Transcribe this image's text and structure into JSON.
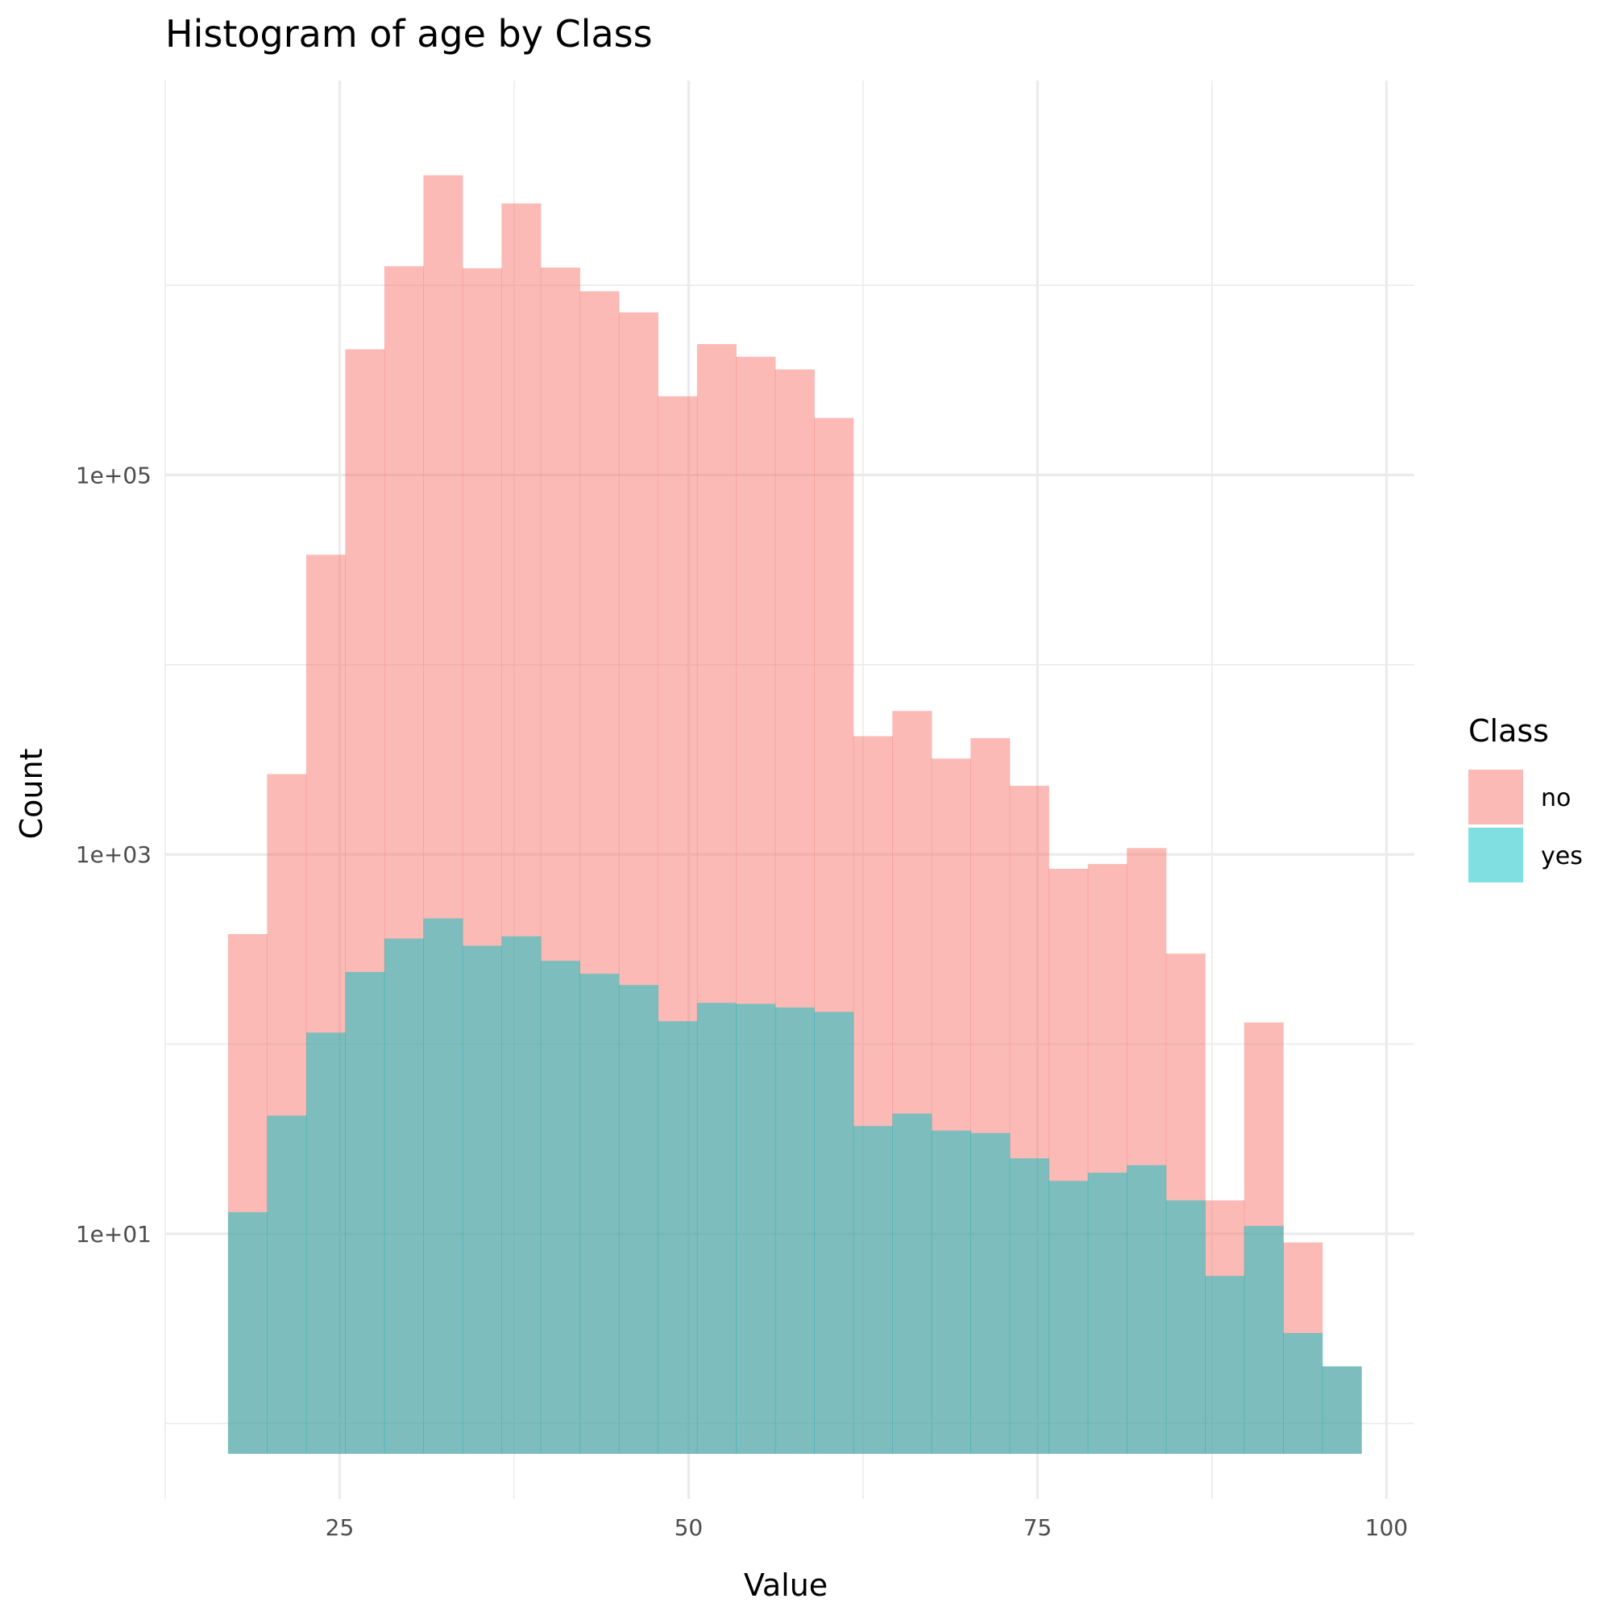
{
  "chart_data": {
    "type": "bar",
    "title": "Histogram of age by Class",
    "xlabel": "Value",
    "ylabel": "Count",
    "x_ticks": [
      25,
      50,
      75,
      100
    ],
    "y_ticks": [
      {
        "value": 10,
        "label": "1e+01"
      },
      {
        "value": 1000,
        "label": "1e+03"
      },
      {
        "value": 100000,
        "label": "1e+05"
      }
    ],
    "y_scale": "log10",
    "grid": true,
    "legend_title": "Class",
    "legend_position": "right",
    "bin_starts": [
      17.0,
      19.8,
      22.6,
      25.4,
      28.2,
      31.0,
      33.8,
      36.6,
      39.4,
      42.2,
      45.0,
      47.8,
      50.6,
      53.4,
      56.2,
      59.0,
      61.8,
      64.6,
      67.4,
      70.2,
      73.0,
      75.8,
      78.6,
      81.4,
      84.2,
      87.0,
      89.8,
      92.6,
      95.4
    ],
    "bin_width": 2.8,
    "series": [
      {
        "name": "no",
        "color": "#F8766D",
        "values": [
          380,
          2650,
          38000,
          460000,
          1260000,
          3800000,
          1230000,
          2700000,
          1240000,
          930000,
          720000,
          260000,
          490000,
          420000,
          360000,
          200000,
          4200,
          5700,
          3200,
          4100,
          2300,
          840,
          890,
          1080,
          300,
          15,
          130,
          9,
          2
        ]
      },
      {
        "name": "yes",
        "color": "#00BFC4",
        "values": [
          13,
          42,
          115,
          240,
          360,
          460,
          330,
          370,
          275,
          235,
          205,
          132,
          165,
          163,
          156,
          148,
          37,
          43,
          35,
          34,
          25,
          19,
          21,
          23,
          15,
          6,
          11,
          3,
          2
        ]
      }
    ]
  }
}
